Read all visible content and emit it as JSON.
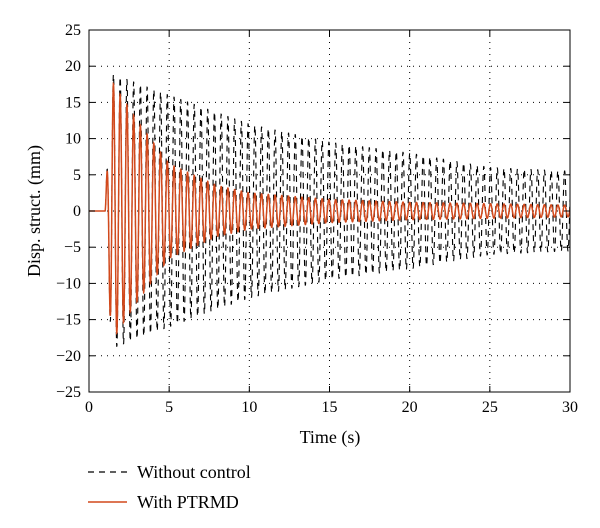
{
  "chart_data": {
    "type": "line",
    "xlabel": "Time (s)",
    "ylabel": "Disp. struct. (mm)",
    "xlim": [
      0,
      30
    ],
    "ylim": [
      -25,
      25
    ],
    "x_ticks": [
      "0",
      "5",
      "10",
      "15",
      "20",
      "25",
      "30"
    ],
    "y_ticks": [
      "25",
      "20",
      "15",
      "10",
      "5",
      "0",
      "−5",
      "−10",
      "−15",
      "−20",
      "−25"
    ],
    "grid": true,
    "legend_position": "bottom-left",
    "series": [
      {
        "name": "Without control",
        "color": "#000000",
        "style": "dashed",
        "onset_s": 1.0,
        "oscillation_period_s": 0.42,
        "envelope_s": [
          1.0,
          1.4,
          5,
          10,
          15,
          20,
          25,
          30
        ],
        "envelope_mm": [
          0,
          19,
          16,
          12,
          9.5,
          8,
          6,
          5.5
        ]
      },
      {
        "name": "With PTRMD",
        "color": "#d2491c",
        "style": "solid",
        "onset_s": 1.0,
        "oscillation_period_s": 0.42,
        "envelope_s": [
          1.0,
          1.4,
          3,
          5,
          8,
          10,
          15,
          20,
          30
        ],
        "envelope_mm": [
          0,
          18,
          12.5,
          6.5,
          3.5,
          2.5,
          1.6,
          1.2,
          0.8
        ]
      }
    ]
  }
}
